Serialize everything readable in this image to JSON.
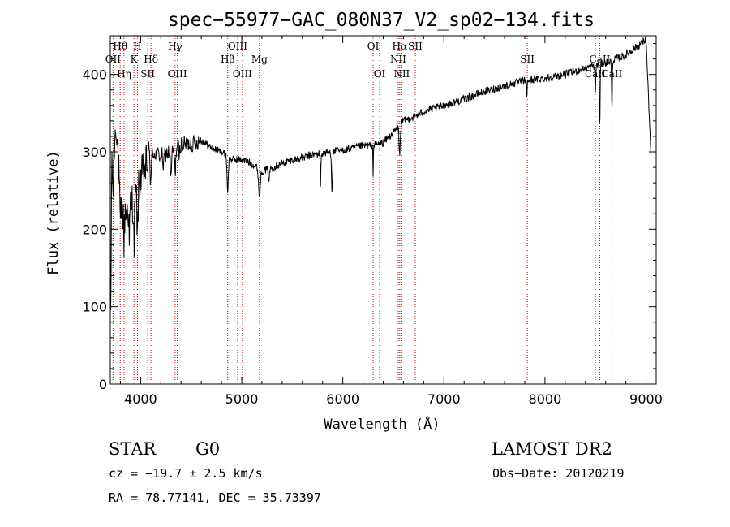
{
  "chart_data": {
    "type": "line",
    "title": "spec−55977−GAC_080N37_V2_sp02−134.fits",
    "xlabel": "Wavelength (Å)",
    "ylabel": "Flux (relative)",
    "xlim": [
      3700,
      9100
    ],
    "ylim": [
      0,
      450
    ],
    "xticks": [
      4000,
      5000,
      6000,
      7000,
      8000,
      9000
    ],
    "yticks": [
      0,
      100,
      200,
      300,
      400
    ],
    "line_color": "#000000",
    "marker_color": "#cc0000",
    "spectral_lines": [
      {
        "label": "Hθ",
        "wavelength": 3798,
        "row": 1
      },
      {
        "label": "OII",
        "wavelength": 3727,
        "row": 2
      },
      {
        "label": "Hη",
        "wavelength": 3836,
        "row": 3
      },
      {
        "label": "H",
        "wavelength": 3969,
        "row": 1
      },
      {
        "label": "K",
        "wavelength": 3934,
        "row": 2
      },
      {
        "label": "SII",
        "wavelength": 4070,
        "row": 3
      },
      {
        "label": "Hδ",
        "wavelength": 4102,
        "row": 2
      },
      {
        "label": "Hγ",
        "wavelength": 4341,
        "row": 1
      },
      {
        "label": "OIII",
        "wavelength": 4363,
        "row": 3
      },
      {
        "label": "OIII",
        "wavelength": 4959,
        "row": 1
      },
      {
        "label": "Hβ",
        "wavelength": 4861,
        "row": 2
      },
      {
        "label": "OIII",
        "wavelength": 5007,
        "row": 3
      },
      {
        "label": "Mg",
        "wavelength": 5175,
        "row": 2
      },
      {
        "label": "OI",
        "wavelength": 6300,
        "row": 1
      },
      {
        "label": "OI",
        "wavelength": 6364,
        "row": 3
      },
      {
        "label": "Hα",
        "wavelength": 6563,
        "row": 1
      },
      {
        "label": "NII",
        "wavelength": 6548,
        "row": 2
      },
      {
        "label": "NII",
        "wavelength": 6583,
        "row": 3
      },
      {
        "label": "SII",
        "wavelength": 6717,
        "row": 1
      },
      {
        "label": "SII",
        "wavelength": 7825,
        "row": 2
      },
      {
        "label": "CaII",
        "wavelength": 8542,
        "row": 2
      },
      {
        "label": "CaII",
        "wavelength": 8498,
        "row": 3
      },
      {
        "label": "CaII",
        "wavelength": 8662,
        "row": 3
      }
    ],
    "continuum": [
      [
        3700,
        250
      ],
      [
        3760,
        340
      ],
      [
        3800,
        225
      ],
      [
        3850,
        220
      ],
      [
        3900,
        235
      ],
      [
        3950,
        240
      ],
      [
        4000,
        265
      ],
      [
        4050,
        280
      ],
      [
        4100,
        300
      ],
      [
        4200,
        295
      ],
      [
        4300,
        300
      ],
      [
        4400,
        310
      ],
      [
        4500,
        310
      ],
      [
        4600,
        315
      ],
      [
        4700,
        305
      ],
      [
        4800,
        300
      ],
      [
        4900,
        290
      ],
      [
        5000,
        290
      ],
      [
        5100,
        285
      ],
      [
        5200,
        275
      ],
      [
        5300,
        280
      ],
      [
        5400,
        285
      ],
      [
        5500,
        290
      ],
      [
        5600,
        292
      ],
      [
        5700,
        296
      ],
      [
        5800,
        298
      ],
      [
        5900,
        300
      ],
      [
        6000,
        302
      ],
      [
        6100,
        305
      ],
      [
        6200,
        308
      ],
      [
        6300,
        308
      ],
      [
        6400,
        312
      ],
      [
        6500,
        325
      ],
      [
        6600,
        340
      ],
      [
        6700,
        345
      ],
      [
        6800,
        352
      ],
      [
        7000,
        360
      ],
      [
        7200,
        368
      ],
      [
        7400,
        378
      ],
      [
        7600,
        385
      ],
      [
        7800,
        392
      ],
      [
        8000,
        395
      ],
      [
        8200,
        400
      ],
      [
        8400,
        408
      ],
      [
        8600,
        415
      ],
      [
        8800,
        425
      ],
      [
        8950,
        440
      ],
      [
        9000,
        445
      ],
      [
        9050,
        290
      ]
    ],
    "absorption": [
      {
        "wavelength": 3727,
        "depth": 40,
        "width": 5
      },
      {
        "wavelength": 3798,
        "depth": 35,
        "width": 5
      },
      {
        "wavelength": 3836,
        "depth": 45,
        "width": 5
      },
      {
        "wavelength": 3889,
        "depth": 50,
        "width": 6
      },
      {
        "wavelength": 3934,
        "depth": 55,
        "width": 7
      },
      {
        "wavelength": 3969,
        "depth": 55,
        "width": 7
      },
      {
        "wavelength": 4102,
        "depth": 35,
        "width": 8
      },
      {
        "wavelength": 4226,
        "depth": 20,
        "width": 6
      },
      {
        "wavelength": 4300,
        "depth": 35,
        "width": 8
      },
      {
        "wavelength": 4341,
        "depth": 30,
        "width": 8
      },
      {
        "wavelength": 4383,
        "depth": 15,
        "width": 6
      },
      {
        "wavelength": 4861,
        "depth": 45,
        "width": 9
      },
      {
        "wavelength": 5175,
        "depth": 35,
        "width": 12
      },
      {
        "wavelength": 5270,
        "depth": 15,
        "width": 8
      },
      {
        "wavelength": 5780,
        "depth": 45,
        "width": 4
      },
      {
        "wavelength": 5893,
        "depth": 50,
        "width": 7
      },
      {
        "wavelength": 6300,
        "depth": 40,
        "width": 3
      },
      {
        "wavelength": 6563,
        "depth": 40,
        "width": 8
      },
      {
        "wavelength": 7820,
        "depth": 25,
        "width": 4
      },
      {
        "wavelength": 8498,
        "depth": 40,
        "width": 5
      },
      {
        "wavelength": 8542,
        "depth": 85,
        "width": 5
      },
      {
        "wavelength": 8662,
        "depth": 65,
        "width": 5
      }
    ]
  },
  "info": {
    "class": "STAR",
    "subclass": "G0",
    "survey": "LAMOST DR2",
    "cz": "cz = −19.7 ± 2.5 km/s",
    "obsdate": "Obs−Date: 20120219",
    "radec": "RA =  78.77141, DEC =  35.73397"
  }
}
